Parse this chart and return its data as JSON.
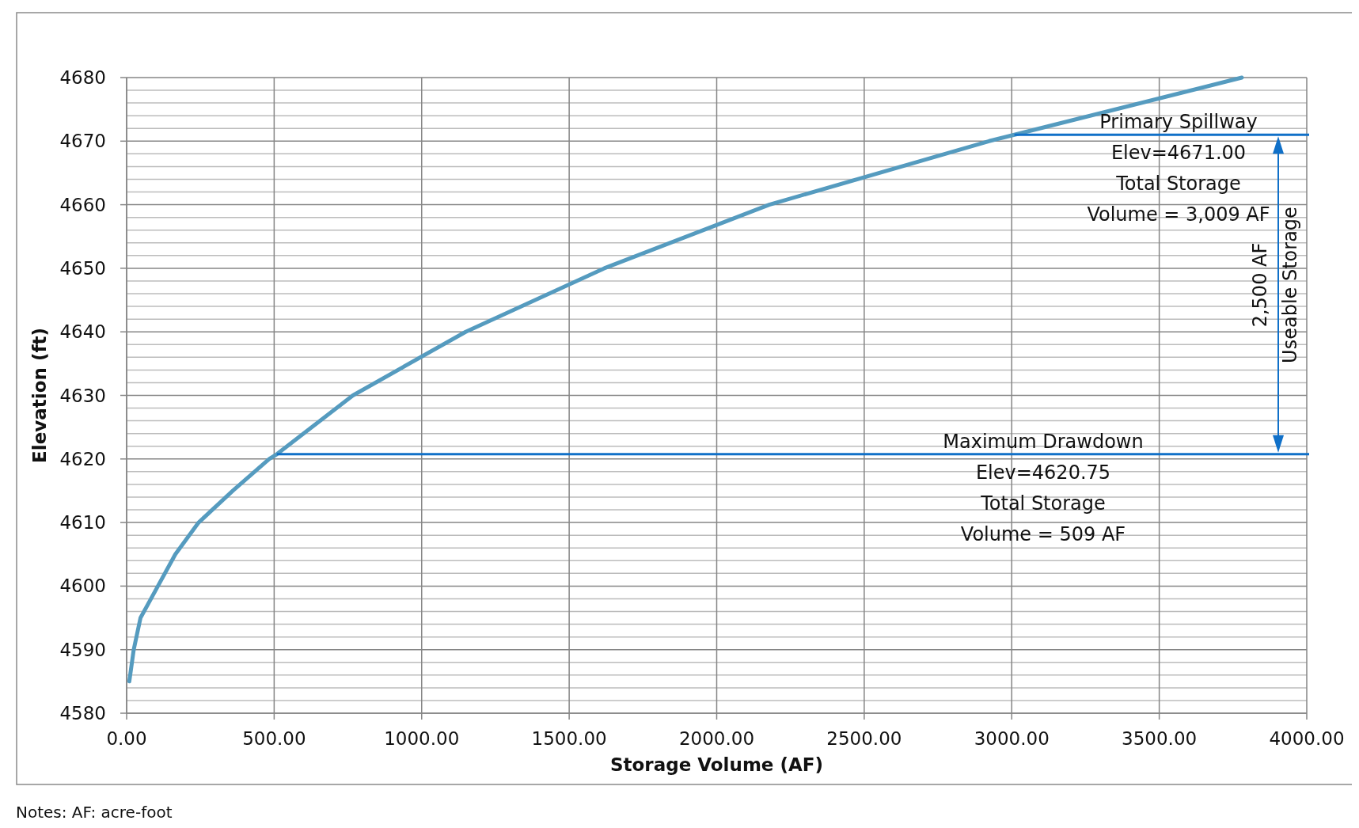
{
  "chart_data": {
    "type": "line",
    "xlabel": "Storage Volume (AF)",
    "ylabel": "Elevation (ft)",
    "xlim": [
      0,
      4000
    ],
    "ylim": [
      4580,
      4680
    ],
    "xticks": [
      {
        "value": 0,
        "label": "0.00"
      },
      {
        "value": 500,
        "label": "500.00"
      },
      {
        "value": 1000,
        "label": "1000.00"
      },
      {
        "value": 1500,
        "label": "1500.00"
      },
      {
        "value": 2000,
        "label": "2000.00"
      },
      {
        "value": 2500,
        "label": "2500.00"
      },
      {
        "value": 3000,
        "label": "3000.00"
      },
      {
        "value": 3500,
        "label": "3500.00"
      },
      {
        "value": 4000,
        "label": "4000.00"
      }
    ],
    "yticks": [
      4580,
      4590,
      4600,
      4610,
      4620,
      4630,
      4640,
      4650,
      4660,
      4670,
      4680
    ],
    "grid": true,
    "marker": "none",
    "line_style": "solid",
    "series": [
      {
        "color": "#559bbf",
        "x": [
          9,
          24,
          47,
          106,
          165,
          244,
          360,
          483,
          509,
          767,
          1149,
          1619,
          2178,
          2923,
          3009,
          3780
        ],
        "values": [
          4585,
          4590,
          4595,
          4600,
          4605,
          4610,
          4615,
          4620,
          4620.75,
          4630,
          4640,
          4650,
          4660,
          4670,
          4671,
          4680
        ]
      }
    ],
    "ref_lines": [
      {
        "axis": "y",
        "value": 4671,
        "label": "Primary Spillway\nElev=4671.00\nTotal Storage\nVolume = 3,009 AF",
        "color": "#1070c8"
      },
      {
        "axis": "y",
        "value": 4620.75,
        "label": "Maximum Drawdown\nElev=4620.75\nTotal Storage\nVolume = 509 AF",
        "color": "#1070c8"
      }
    ],
    "annotations": [
      "2,500 AF",
      "Useable Storage",
      "Notes: AF: acre-foot"
    ]
  }
}
